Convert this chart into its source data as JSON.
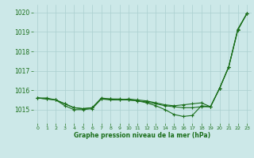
{
  "background_color": "#cce8e8",
  "grid_color": "#aacfcf",
  "line_color": "#1a6e1a",
  "title": "Graphe pression niveau de la mer (hPa)",
  "xlim": [
    -0.5,
    23.5
  ],
  "ylim": [
    1014.3,
    1020.4
  ],
  "yticks": [
    1015,
    1016,
    1017,
    1018,
    1019,
    1020
  ],
  "xticks": [
    0,
    1,
    2,
    3,
    4,
    5,
    6,
    7,
    8,
    9,
    10,
    11,
    12,
    13,
    14,
    15,
    16,
    17,
    18,
    19,
    20,
    21,
    22,
    23
  ],
  "series1_y": [
    1015.6,
    1015.6,
    1015.5,
    1015.2,
    1015.0,
    1015.0,
    1015.05,
    1015.55,
    1015.55,
    1015.55,
    1015.5,
    1015.45,
    1015.35,
    1015.2,
    1015.0,
    1014.75,
    1014.65,
    1014.7,
    1015.2,
    1015.15,
    1016.1,
    1017.2,
    1019.1,
    1019.95
  ],
  "series2_y": [
    1015.6,
    1015.55,
    1015.5,
    1015.3,
    1015.1,
    1015.05,
    1015.1,
    1015.6,
    1015.55,
    1015.5,
    1015.55,
    1015.5,
    1015.45,
    1015.35,
    1015.25,
    1015.2,
    1015.25,
    1015.3,
    1015.35,
    1015.15,
    1016.1,
    1017.2,
    1019.1,
    1019.95
  ],
  "series3_y": [
    1015.6,
    1015.55,
    1015.5,
    1015.3,
    1015.1,
    1015.05,
    1015.1,
    1015.55,
    1015.5,
    1015.5,
    1015.5,
    1015.45,
    1015.4,
    1015.3,
    1015.2,
    1015.15,
    1015.1,
    1015.1,
    1015.15,
    1015.15,
    1016.1,
    1017.2,
    1019.15,
    1019.95
  ]
}
